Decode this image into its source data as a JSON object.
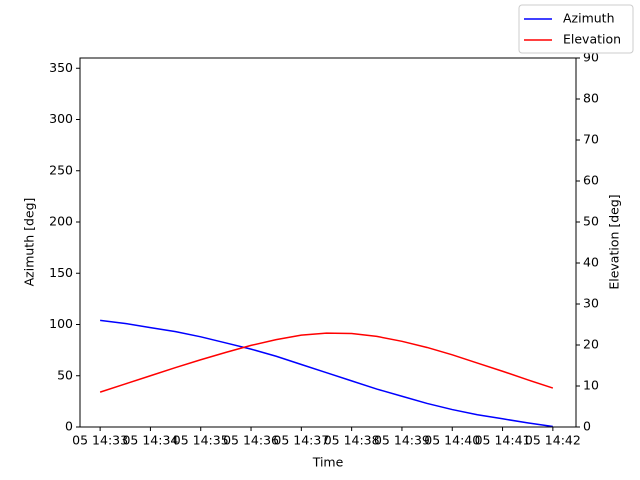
{
  "chart_data": {
    "type": "line",
    "xlabel": "Time",
    "ylabel": "Azimuth [deg]",
    "y2label": "Elevation [deg]",
    "x": [
      33,
      33.5,
      34,
      34.5,
      35,
      35.5,
      36,
      36.5,
      37,
      37.5,
      38,
      38.5,
      39,
      39.5,
      40,
      40.5,
      41,
      41.5,
      42
    ],
    "series": [
      {
        "name": "Azimuth",
        "color": "#0000ff",
        "axis": "y",
        "values": [
          104,
          101,
          97,
          93,
          88,
          82,
          76,
          69,
          61,
          53,
          45,
          37,
          30,
          23,
          17,
          12,
          8,
          4,
          0.5
        ]
      },
      {
        "name": "Elevation",
        "color": "#ff0000",
        "axis": "y2",
        "values": [
          8.5,
          10.5,
          12.5,
          14.5,
          16.4,
          18.2,
          19.9,
          21.3,
          22.4,
          22.9,
          22.8,
          22.1,
          20.9,
          19.4,
          17.6,
          15.6,
          13.6,
          11.5,
          9.5
        ]
      }
    ],
    "xlim": [
      32.6,
      42.46
    ],
    "xticks": [
      {
        "value": 33,
        "label": "05 14:33"
      },
      {
        "value": 34,
        "label": "05 14:34"
      },
      {
        "value": 35,
        "label": "05 14:35"
      },
      {
        "value": 36,
        "label": "05 14:36"
      },
      {
        "value": 37,
        "label": "05 14:37"
      },
      {
        "value": 38,
        "label": "05 14:38"
      },
      {
        "value": 39,
        "label": "05 14:39"
      },
      {
        "value": 40,
        "label": "05 14:40"
      },
      {
        "value": 41,
        "label": "05 14:41"
      },
      {
        "value": 42,
        "label": "05 14:42"
      }
    ],
    "ylim": [
      0,
      360
    ],
    "yticks": [
      0,
      50,
      100,
      150,
      200,
      250,
      300,
      350
    ],
    "y2lim": [
      0,
      90
    ],
    "y2ticks": [
      0,
      10,
      20,
      30,
      40,
      50,
      60,
      70,
      80,
      90
    ],
    "legend": "upper right"
  }
}
